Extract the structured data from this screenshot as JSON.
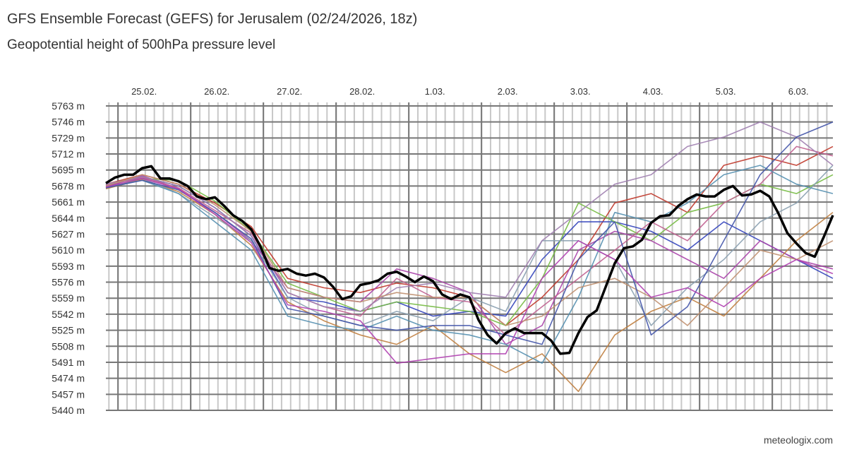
{
  "title": "GFS Ensemble Forecast (GEFS) for Jerusalem (02/24/2026, 18z)",
  "subtitle": "Geopotential height of 500hPa pressure level",
  "footer": "meteologix.com",
  "chart_data": {
    "type": "line",
    "title": "GFS Ensemble Forecast (GEFS) for Jerusalem (02/24/2026, 18z)",
    "subtitle": "Geopotential height of 500hPa pressure level",
    "x_start": "2026-02-24 18z",
    "x_step_hours": 3,
    "x_end": "2026-03-06 18z",
    "x_tick_labels": [
      "25.02.",
      "26.02.",
      "27.02.",
      "28.02.",
      "1.03.",
      "2.03.",
      "3.03.",
      "4.03.",
      "5.03.",
      "6.03."
    ],
    "y_unit": "m",
    "ylim": [
      5440,
      5763
    ],
    "y_ticks": [
      5763,
      5746,
      5729,
      5712,
      5695,
      5678,
      5661,
      5644,
      5627,
      5610,
      5593,
      5576,
      5559,
      5542,
      5525,
      5508,
      5491,
      5474,
      5457,
      5440
    ],
    "grid": true,
    "main_series": {
      "color": "#000000",
      "step_hours": 3,
      "values": [
        5681,
        5687,
        5690,
        5690,
        5697,
        5699,
        5686,
        5686,
        5683,
        5678,
        5667,
        5664,
        5666,
        5657,
        5647,
        5641,
        5632,
        5614,
        5591,
        5588,
        5590,
        5585,
        5583,
        5585,
        5581,
        5571,
        5558,
        5561,
        5573,
        5575,
        5578,
        5585,
        5587,
        5582,
        5576,
        5582,
        5577,
        5563,
        5558,
        5563,
        5560,
        5536,
        5520,
        5511,
        5522,
        5527,
        5522,
        5522,
        5522,
        5514,
        5500,
        5501,
        5522,
        5539,
        5546,
        5571,
        5596,
        5612,
        5614,
        5621,
        5639,
        5646,
        5647,
        5657,
        5664,
        5669,
        5667,
        5667,
        5674,
        5678,
        5668,
        5669,
        5673,
        5667,
        5649,
        5628,
        5617,
        5607,
        5603,
        5624,
        5647
      ]
    },
    "ensemble_members": {
      "step_hours": 12,
      "series": [
        {
          "color": "#c0392b",
          "values": [
            5680,
            5690,
            5680,
            5660,
            5635,
            5580,
            5570,
            5565,
            5575,
            5570,
            5560,
            5530,
            5560,
            5600,
            5660,
            5670,
            5650,
            5700,
            5710,
            5700,
            5720
          ]
        },
        {
          "color": "#3344bb",
          "values": [
            5678,
            5688,
            5678,
            5655,
            5625,
            5560,
            5555,
            5545,
            5555,
            5540,
            5545,
            5540,
            5600,
            5640,
            5640,
            5630,
            5610,
            5640,
            5620,
            5600,
            5580
          ]
        },
        {
          "color": "#77bb44",
          "values": [
            5676,
            5686,
            5684,
            5662,
            5630,
            5575,
            5560,
            5545,
            5555,
            5550,
            5545,
            5530,
            5580,
            5660,
            5640,
            5620,
            5650,
            5660,
            5680,
            5670,
            5690
          ]
        },
        {
          "color": "#aa44aa",
          "values": [
            5677,
            5689,
            5675,
            5650,
            5620,
            5570,
            5560,
            5555,
            5590,
            5580,
            5565,
            5510,
            5530,
            5610,
            5630,
            5620,
            5600,
            5580,
            5620,
            5600,
            5590
          ]
        },
        {
          "color": "#c08040",
          "values": [
            5675,
            5685,
            5672,
            5648,
            5615,
            5555,
            5535,
            5520,
            5510,
            5530,
            5500,
            5480,
            5500,
            5460,
            5520,
            5545,
            5560,
            5540,
            5580,
            5620,
            5650
          ]
        },
        {
          "color": "#8aa0b0",
          "values": [
            5680,
            5686,
            5670,
            5645,
            5620,
            5560,
            5540,
            5530,
            5545,
            5535,
            5560,
            5545,
            5620,
            5620,
            5600,
            5530,
            5570,
            5600,
            5640,
            5660,
            5700
          ]
        },
        {
          "color": "#c06090",
          "values": [
            5679,
            5687,
            5676,
            5652,
            5628,
            5565,
            5550,
            5540,
            5580,
            5560,
            5555,
            5520,
            5550,
            5580,
            5610,
            5640,
            5620,
            5660,
            5680,
            5720,
            5710
          ]
        },
        {
          "color": "#5590b0",
          "values": [
            5677,
            5684,
            5670,
            5640,
            5610,
            5540,
            5530,
            5525,
            5540,
            5525,
            5520,
            5510,
            5490,
            5560,
            5650,
            5640,
            5660,
            5690,
            5700,
            5680,
            5670
          ]
        },
        {
          "color": "#a080b0",
          "values": [
            5680,
            5688,
            5678,
            5655,
            5625,
            5565,
            5550,
            5545,
            5570,
            5575,
            5565,
            5560,
            5620,
            5650,
            5680,
            5690,
            5720,
            5730,
            5746,
            5730,
            5700
          ]
        },
        {
          "color": "#c09070",
          "values": [
            5678,
            5690,
            5680,
            5658,
            5630,
            5570,
            5560,
            5555,
            5565,
            5560,
            5560,
            5530,
            5540,
            5570,
            5580,
            5560,
            5530,
            5570,
            5610,
            5600,
            5620
          ]
        },
        {
          "color": "#4455aa",
          "values": [
            5676,
            5684,
            5674,
            5650,
            5622,
            5548,
            5540,
            5530,
            5525,
            5530,
            5530,
            5520,
            5510,
            5600,
            5640,
            5520,
            5550,
            5620,
            5690,
            5730,
            5746
          ]
        },
        {
          "color": "#b040b0",
          "values": [
            5677,
            5686,
            5675,
            5648,
            5618,
            5552,
            5545,
            5535,
            5490,
            5495,
            5500,
            5500,
            5580,
            5620,
            5600,
            5560,
            5570,
            5550,
            5580,
            5600,
            5585
          ]
        }
      ]
    }
  }
}
